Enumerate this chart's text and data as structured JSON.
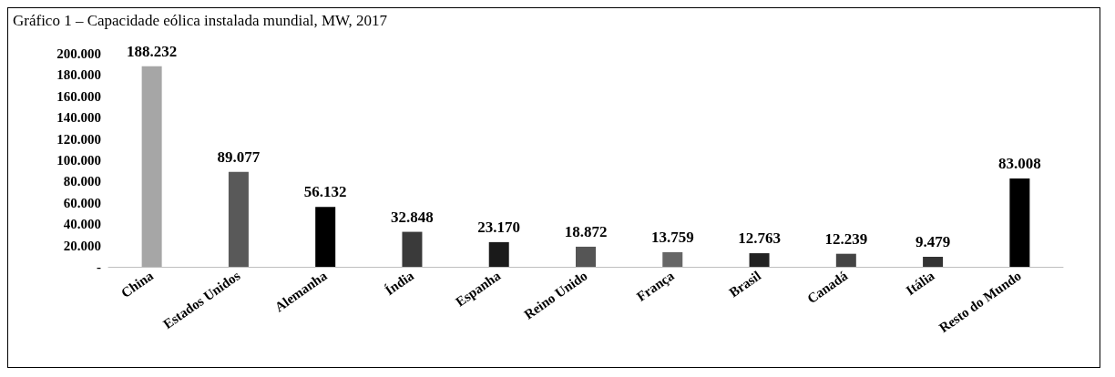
{
  "chart_data": {
    "type": "bar",
    "title": "Gráfico 1 – Capacidade eólica instalada mundial, MW, 2017",
    "categories": [
      "China",
      "Estados Unidos",
      "Alemanha",
      "Índia",
      "Espanha",
      "Reino Unido",
      "França",
      "Brasil",
      "Canadá",
      "Itália",
      "Resto do Mundo"
    ],
    "values": [
      188232,
      89077,
      56132,
      32848,
      23170,
      18872,
      13759,
      12763,
      12239,
      9479,
      83008
    ],
    "value_labels": [
      "188.232",
      "89.077",
      "56.132",
      "32.848",
      "23.170",
      "18.872",
      "13.759",
      "12.763",
      "12.239",
      "9.479",
      "83.008"
    ],
    "colors": [
      "#a6a6a6",
      "#595959",
      "#000000",
      "#3a3a3a",
      "#1a1a1a",
      "#555555",
      "#666666",
      "#222222",
      "#444444",
      "#333333",
      "#000000"
    ],
    "ylim": [
      0,
      200000
    ],
    "yticks": [
      {
        "value": 0,
        "label": "-"
      },
      {
        "value": 20000,
        "label": "20.000"
      },
      {
        "value": 40000,
        "label": "40.000"
      },
      {
        "value": 60000,
        "label": "60.000"
      },
      {
        "value": 80000,
        "label": "80.000"
      },
      {
        "value": 100000,
        "label": "100.000"
      },
      {
        "value": 120000,
        "label": "120.000"
      },
      {
        "value": 140000,
        "label": "140.000"
      },
      {
        "value": 160000,
        "label": "160.000"
      },
      {
        "value": 180000,
        "label": "180.000"
      },
      {
        "value": 200000,
        "label": "200.000"
      }
    ],
    "grid": false
  }
}
